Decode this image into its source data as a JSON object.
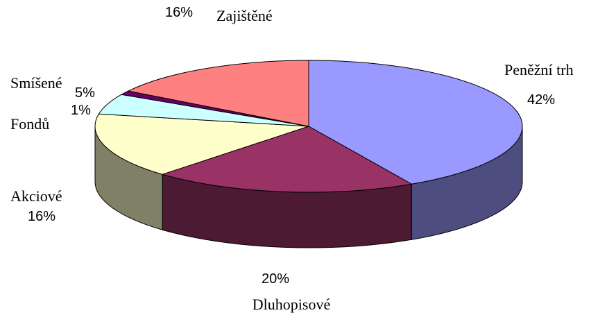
{
  "chart_data": {
    "type": "pie3d",
    "categories": [
      "Peněžní trh",
      "Dluhopisové",
      "Akciové",
      "Smíšené",
      "Fondů",
      "Zajištěné"
    ],
    "values": [
      42,
      20,
      16,
      5,
      1,
      16
    ],
    "value_labels": [
      "42%",
      "20%",
      "16%",
      "5%",
      "1%",
      "16%"
    ],
    "colors": [
      "#9999ff",
      "#993366",
      "#ffffcc",
      "#ccffff",
      "#660066",
      "#ff8080"
    ],
    "side_colors": [
      "#4d4d80",
      "#4d1a33",
      "#808066",
      "#668080",
      "#330033",
      "#804040"
    ]
  }
}
